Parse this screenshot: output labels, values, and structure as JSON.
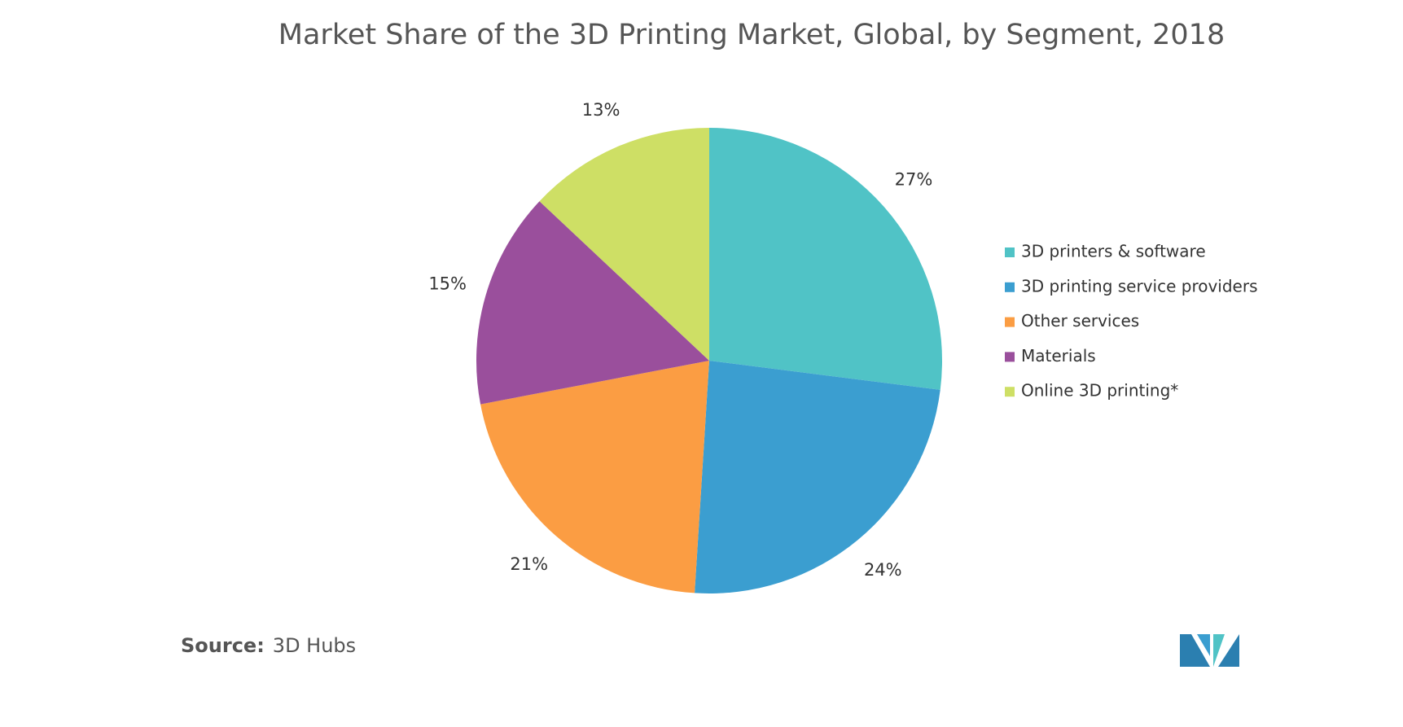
{
  "chart_data": {
    "type": "pie",
    "title": "Market Share of the 3D Printing Market, Global, by Segment, 2018",
    "categories": [
      "3D printers & software",
      "3D printing service providers",
      "Other services",
      "Materials",
      "Online 3D printing*"
    ],
    "values": [
      27,
      24,
      21,
      15,
      13
    ],
    "value_labels": [
      "27%",
      "24%",
      "21%",
      "15%",
      "13%"
    ],
    "colors": [
      "#50c3c6",
      "#3b9ed0",
      "#fb9d43",
      "#9a4f9c",
      "#cedf65"
    ],
    "source_label": "Source:",
    "source": "3D Hubs"
  }
}
